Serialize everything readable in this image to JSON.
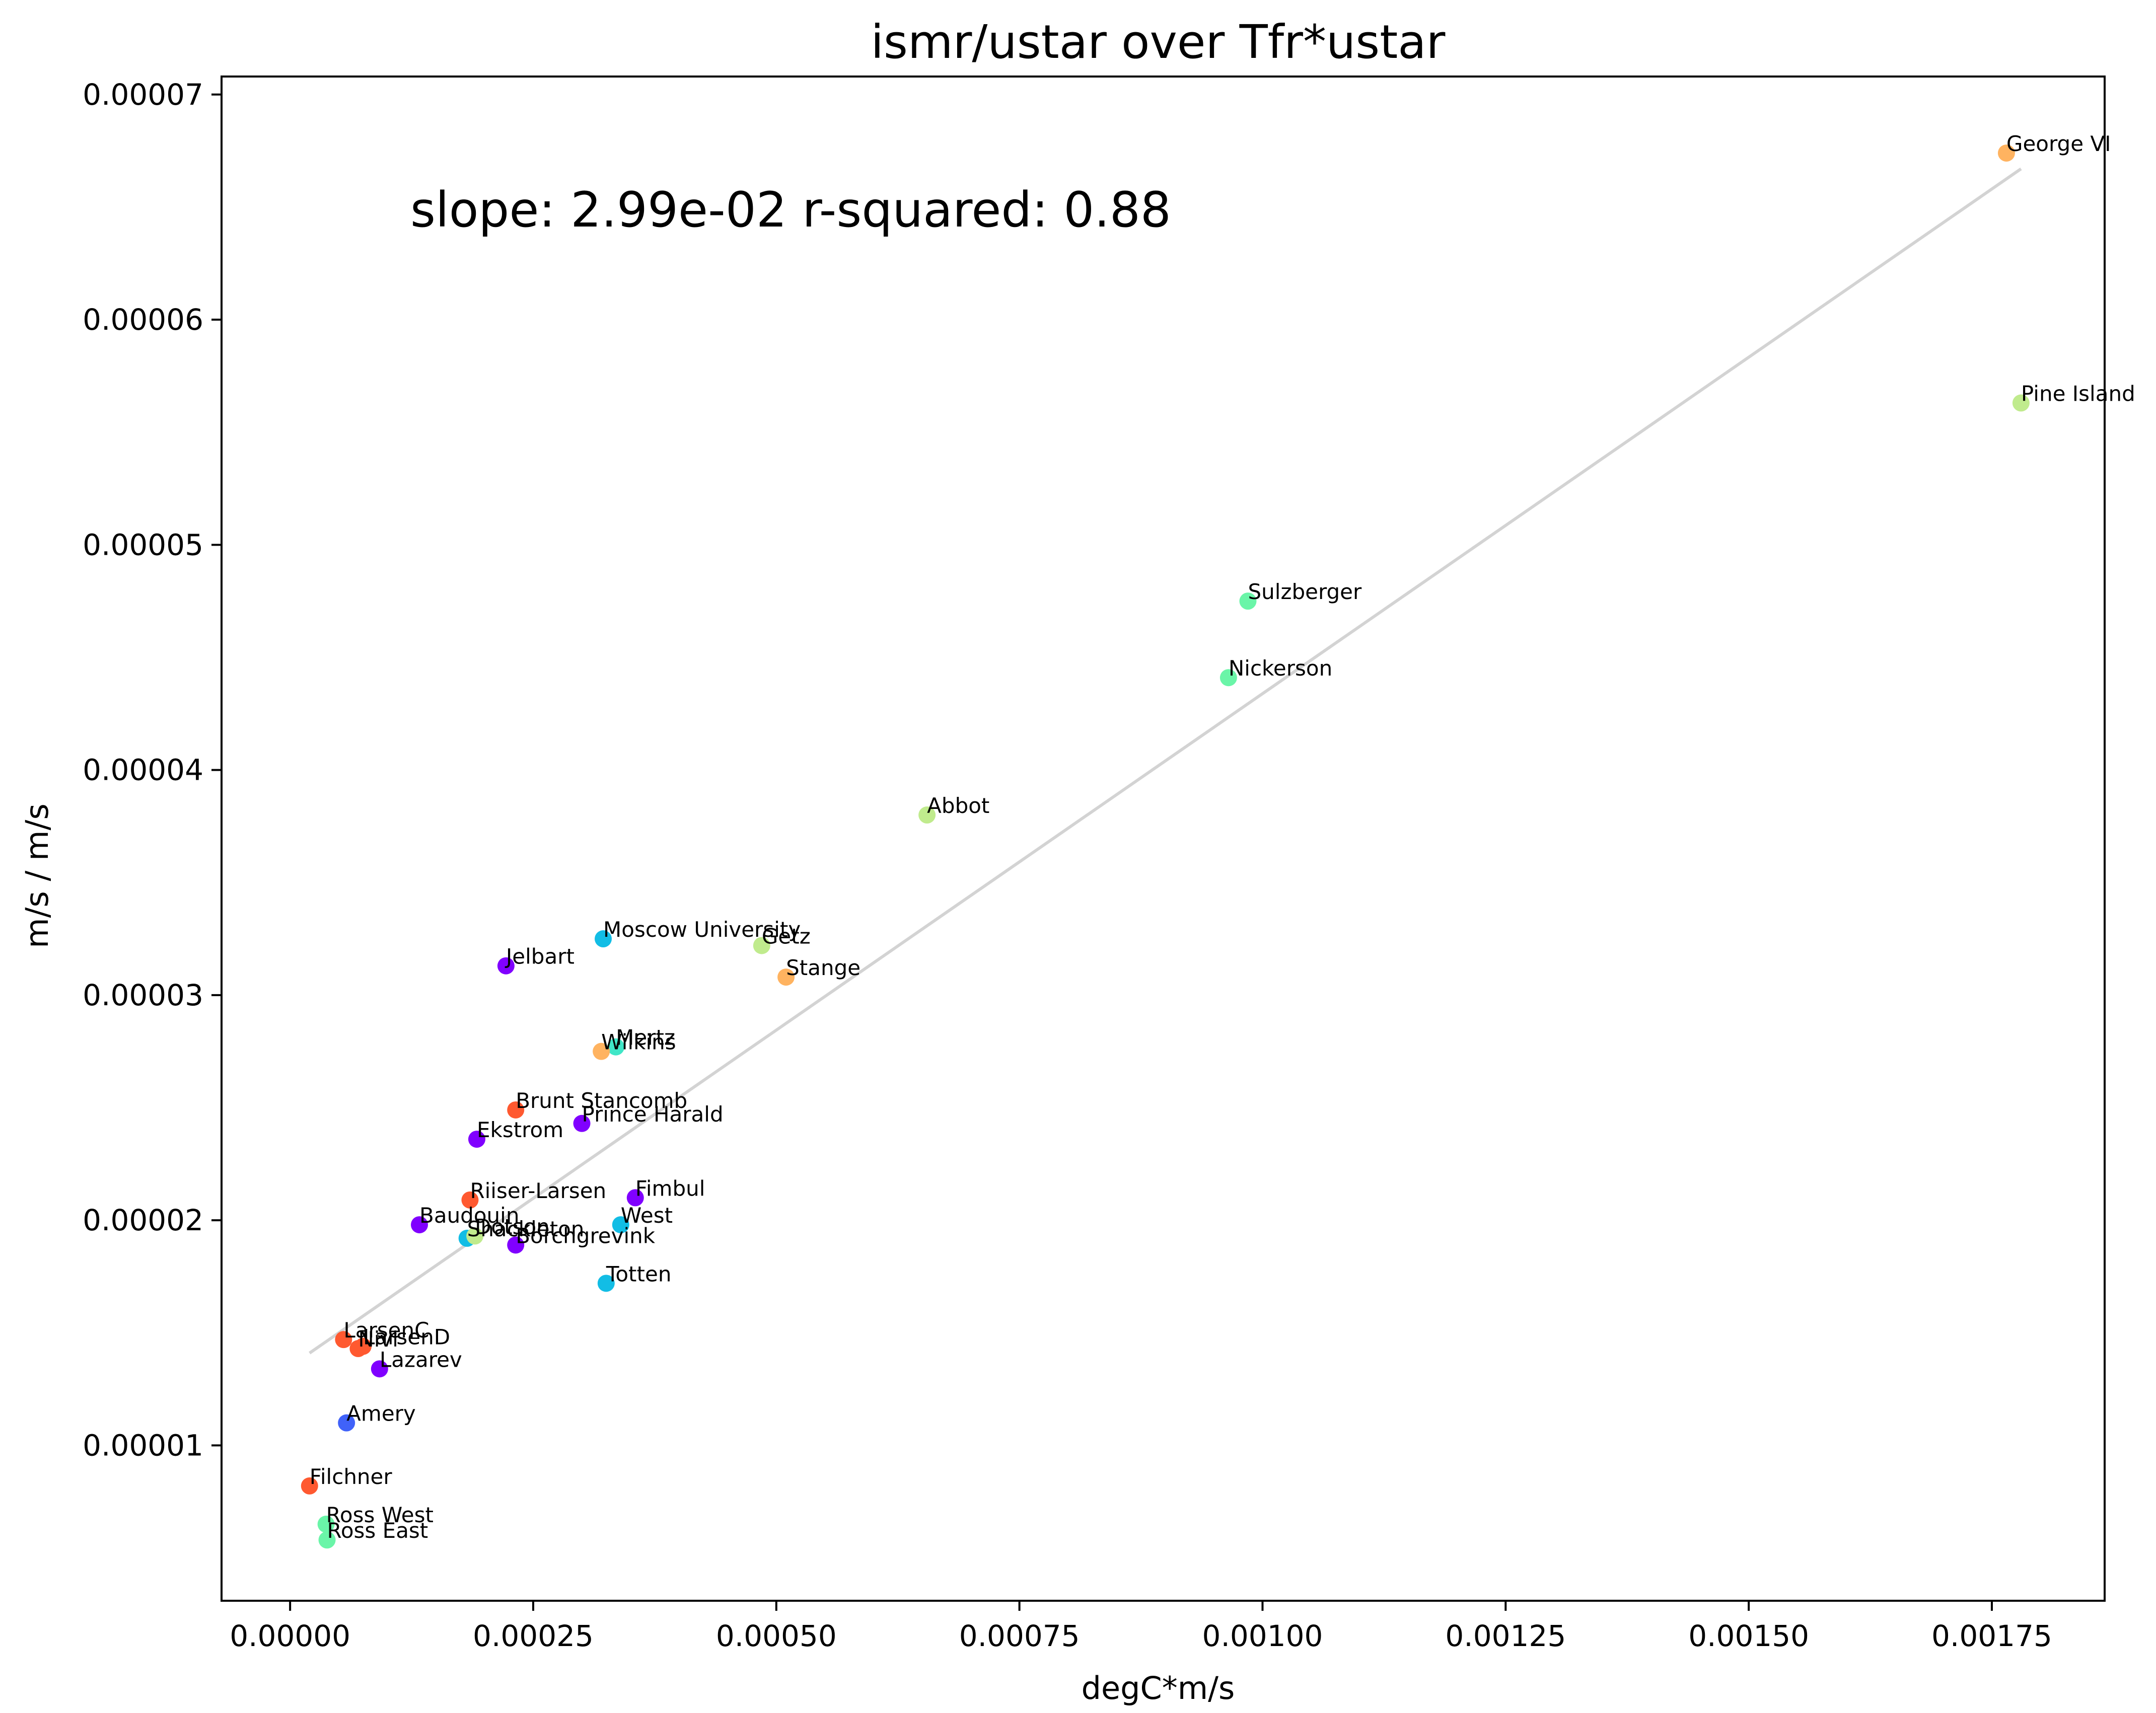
{
  "chart_data": {
    "type": "scatter",
    "title": "ismr/ustar over Tfr*ustar",
    "xlabel": "degC*m/s",
    "ylabel": "m/s / m/s",
    "annotation": "slope: 2.99e-02    r-squared: 0.88",
    "xlim": [
      -7.05e-05,
      0.001866
    ],
    "ylim": [
      3.1e-06,
      7.08e-05
    ],
    "grid": false,
    "x_ticks": [
      {
        "value": 0.0,
        "label": "0.00000"
      },
      {
        "value": 0.00025,
        "label": "0.00025"
      },
      {
        "value": 0.0005,
        "label": "0.00050"
      },
      {
        "value": 0.00075,
        "label": "0.00075"
      },
      {
        "value": 0.001,
        "label": "0.00100"
      },
      {
        "value": 0.00125,
        "label": "0.00125"
      },
      {
        "value": 0.0015,
        "label": "0.00150"
      },
      {
        "value": 0.00175,
        "label": "0.00175"
      }
    ],
    "y_ticks": [
      {
        "value": 1e-05,
        "label": "0.00001"
      },
      {
        "value": 2e-05,
        "label": "0.00002"
      },
      {
        "value": 3e-05,
        "label": "0.00003"
      },
      {
        "value": 4e-05,
        "label": "0.00004"
      },
      {
        "value": 5e-05,
        "label": "0.00005"
      },
      {
        "value": 6e-05,
        "label": "0.00006"
      },
      {
        "value": 7e-05,
        "label": "0.00007"
      }
    ],
    "fit_line": {
      "x": [
        2e-05,
        0.00178
      ],
      "y": [
        1.41e-05,
        6.67e-05
      ],
      "color": "#d3d3d3"
    },
    "points": [
      {
        "name": "George VI",
        "x": 0.001765,
        "y": 6.74e-05,
        "color": "#ffb360"
      },
      {
        "name": "Pine Island",
        "x": 0.00178,
        "y": 5.63e-05,
        "color": "#c0eb8d"
      },
      {
        "name": "Sulzberger",
        "x": 0.000985,
        "y": 4.75e-05,
        "color": "#6af5a8"
      },
      {
        "name": "Nickerson",
        "x": 0.000965,
        "y": 4.41e-05,
        "color": "#6af5a8"
      },
      {
        "name": "Abbot",
        "x": 0.000655,
        "y": 3.8e-05,
        "color": "#c0eb8d"
      },
      {
        "name": "Moscow University",
        "x": 0.000322,
        "y": 3.25e-05,
        "color": "#12bde5"
      },
      {
        "name": "Getz",
        "x": 0.000485,
        "y": 3.22e-05,
        "color": "#c0eb8d"
      },
      {
        "name": "Stange",
        "x": 0.00051,
        "y": 3.08e-05,
        "color": "#ffb360"
      },
      {
        "name": "Jelbart",
        "x": 0.000222,
        "y": 3.13e-05,
        "color": "#8000ff"
      },
      {
        "name": "Mertz",
        "x": 0.000335,
        "y": 2.77e-05,
        "color": "#40e6c7"
      },
      {
        "name": "Wilkins",
        "x": 0.00032,
        "y": 2.75e-05,
        "color": "#ffb360"
      },
      {
        "name": "Brunt Stancomb",
        "x": 0.000232,
        "y": 2.49e-05,
        "color": "#ff5930"
      },
      {
        "name": "Prince Harald",
        "x": 0.0003,
        "y": 2.43e-05,
        "color": "#8000ff"
      },
      {
        "name": "Ekstrom",
        "x": 0.000192,
        "y": 2.36e-05,
        "color": "#8000ff"
      },
      {
        "name": "Riiser-Larsen",
        "x": 0.000185,
        "y": 2.09e-05,
        "color": "#ff5930"
      },
      {
        "name": "Fimbul",
        "x": 0.000355,
        "y": 2.1e-05,
        "color": "#8000ff"
      },
      {
        "name": "Baudouin",
        "x": 0.000133,
        "y": 1.98e-05,
        "color": "#8000ff"
      },
      {
        "name": "West",
        "x": 0.00034,
        "y": 1.98e-05,
        "color": "#12bde5"
      },
      {
        "name": "Shackleton",
        "x": 0.000182,
        "y": 1.92e-05,
        "color": "#12bde5"
      },
      {
        "name": "Dotson",
        "x": 0.00019,
        "y": 1.93e-05,
        "color": "#c0eb8d"
      },
      {
        "name": "Borchgrevink",
        "x": 0.000232,
        "y": 1.89e-05,
        "color": "#8000ff"
      },
      {
        "name": "Totten",
        "x": 0.000325,
        "y": 1.72e-05,
        "color": "#12bde5"
      },
      {
        "name": "LarsenC",
        "x": 5.5e-05,
        "y": 1.47e-05,
        "color": "#ff5930"
      },
      {
        "name": "LarsenD",
        "x": 7.5e-05,
        "y": 1.44e-05,
        "color": "#ff5930"
      },
      {
        "name": "Nivl",
        "x": 7e-05,
        "y": 1.43e-05,
        "color": "#ff5930"
      },
      {
        "name": "Lazarev",
        "x": 9.2e-05,
        "y": 1.34e-05,
        "color": "#8000ff"
      },
      {
        "name": "Amery",
        "x": 5.8e-05,
        "y": 1.1e-05,
        "color": "#4062f9"
      },
      {
        "name": "Filchner",
        "x": 2e-05,
        "y": 8.2e-06,
        "color": "#ff5930"
      },
      {
        "name": "Ross West",
        "x": 3.7e-05,
        "y": 6.5e-06,
        "color": "#6af5a8"
      },
      {
        "name": "Ross East",
        "x": 3.8e-05,
        "y": 5.8e-06,
        "color": "#6af5a8"
      }
    ]
  }
}
